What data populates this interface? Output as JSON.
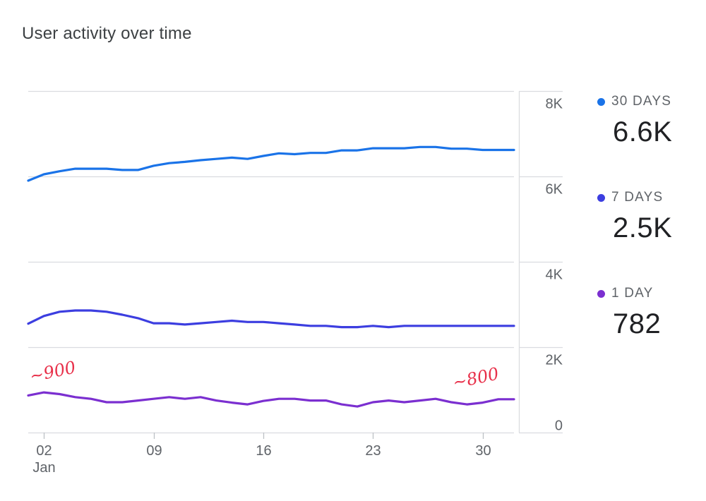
{
  "title": "User activity over time",
  "chart_data": {
    "type": "line",
    "title": "User activity over time",
    "ylim": [
      0,
      8000
    ],
    "y_ticks": [
      {
        "value": 8000,
        "label": "8K"
      },
      {
        "value": 6000,
        "label": "6K"
      },
      {
        "value": 4000,
        "label": "4K"
      },
      {
        "value": 2000,
        "label": "2K"
      },
      {
        "value": 0,
        "label": "0"
      }
    ],
    "x_range": [
      1,
      32
    ],
    "x_ticks": [
      {
        "day": 2,
        "label": "02",
        "sublabel": "Jan"
      },
      {
        "day": 9,
        "label": "09",
        "sublabel": ""
      },
      {
        "day": 16,
        "label": "16",
        "sublabel": ""
      },
      {
        "day": 23,
        "label": "23",
        "sublabel": ""
      },
      {
        "day": 30,
        "label": "30",
        "sublabel": ""
      }
    ],
    "days": [
      1,
      2,
      3,
      4,
      5,
      6,
      7,
      8,
      9,
      10,
      11,
      12,
      13,
      14,
      15,
      16,
      17,
      18,
      19,
      20,
      21,
      22,
      23,
      24,
      25,
      26,
      27,
      28,
      29,
      30,
      31,
      32
    ],
    "series": [
      {
        "name": "30 DAYS",
        "color": "#1a73e8",
        "values": [
          5900,
          6050,
          6120,
          6180,
          6180,
          6180,
          6150,
          6150,
          6250,
          6310,
          6340,
          6380,
          6410,
          6440,
          6410,
          6480,
          6540,
          6520,
          6550,
          6550,
          6610,
          6610,
          6660,
          6660,
          6660,
          6690,
          6690,
          6650,
          6650,
          6620,
          6620,
          6620
        ]
      },
      {
        "name": "7 DAYS",
        "color": "#3c3ee0",
        "values": [
          2550,
          2730,
          2830,
          2860,
          2860,
          2830,
          2760,
          2680,
          2560,
          2560,
          2530,
          2560,
          2590,
          2620,
          2590,
          2590,
          2560,
          2530,
          2500,
          2500,
          2470,
          2470,
          2500,
          2470,
          2500,
          2500,
          2500,
          2500,
          2500,
          2500,
          2500,
          2500
        ]
      },
      {
        "name": "1 DAY",
        "color": "#7b2fd0",
        "values": [
          870,
          940,
          900,
          830,
          790,
          710,
          710,
          750,
          790,
          830,
          790,
          830,
          750,
          700,
          660,
          740,
          790,
          790,
          750,
          750,
          660,
          610,
          710,
          750,
          710,
          750,
          790,
          710,
          660,
          700,
          780,
          780
        ]
      }
    ],
    "annotations": [
      {
        "text": "~900",
        "day": 1,
        "value": 1180
      },
      {
        "text": "~800",
        "day": 28,
        "value": 1030
      }
    ]
  },
  "legend": [
    {
      "label": "30 DAYS",
      "value": "6.6K",
      "color": "#1a73e8"
    },
    {
      "label": "7 DAYS",
      "value": "2.5K",
      "color": "#3c3ee0"
    },
    {
      "label": "1 DAY",
      "value": "782",
      "color": "#7b2fd0"
    }
  ]
}
